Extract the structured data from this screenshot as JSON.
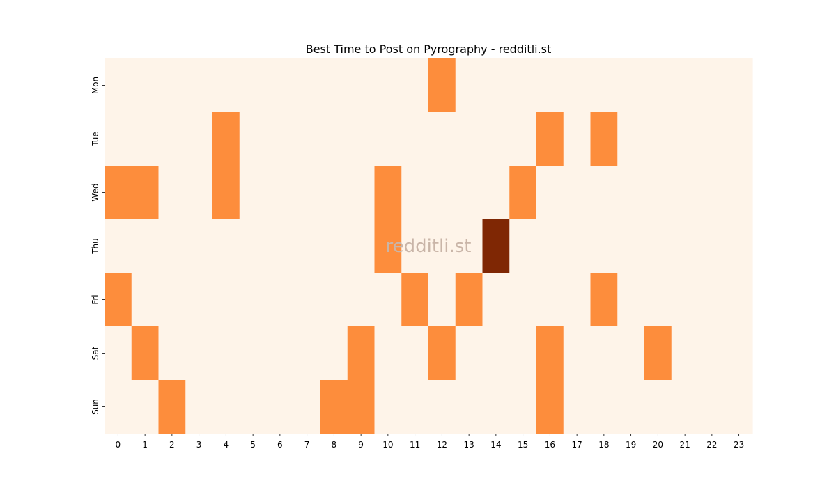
{
  "chart_data": {
    "type": "heatmap",
    "title": "Best Time to Post on Pyrography - redditli.st",
    "watermark": "redditli.st",
    "x_labels": [
      "0",
      "1",
      "2",
      "3",
      "4",
      "5",
      "6",
      "7",
      "8",
      "9",
      "10",
      "11",
      "12",
      "13",
      "14",
      "15",
      "16",
      "17",
      "18",
      "19",
      "20",
      "21",
      "22",
      "23"
    ],
    "y_labels": [
      "Mon",
      "Tue",
      "Wed",
      "Thu",
      "Fri",
      "Sat",
      "Sun"
    ],
    "xlabel": "",
    "ylabel": "",
    "values": [
      [
        0,
        0,
        0,
        0,
        0,
        0,
        0,
        0,
        0,
        0,
        0,
        0,
        1,
        0,
        0,
        0,
        0,
        0,
        0,
        0,
        0,
        0,
        0,
        0
      ],
      [
        0,
        0,
        0,
        0,
        1,
        0,
        0,
        0,
        0,
        0,
        0,
        0,
        0,
        0,
        0,
        0,
        1,
        0,
        1,
        0,
        0,
        0,
        0,
        0
      ],
      [
        1,
        1,
        0,
        0,
        1,
        0,
        0,
        0,
        0,
        0,
        1,
        0,
        0,
        0,
        0,
        1,
        0,
        0,
        0,
        0,
        0,
        0,
        0,
        0
      ],
      [
        0,
        0,
        0,
        0,
        0,
        0,
        0,
        0,
        0,
        0,
        1,
        0,
        0,
        0,
        2,
        0,
        0,
        0,
        0,
        0,
        0,
        0,
        0,
        0
      ],
      [
        1,
        0,
        0,
        0,
        0,
        0,
        0,
        0,
        0,
        0,
        0,
        1,
        0,
        1,
        0,
        0,
        0,
        0,
        1,
        0,
        0,
        0,
        0,
        0
      ],
      [
        0,
        1,
        0,
        0,
        0,
        0,
        0,
        0,
        0,
        1,
        0,
        0,
        1,
        0,
        0,
        0,
        1,
        0,
        0,
        0,
        1,
        0,
        0,
        0
      ],
      [
        0,
        0,
        1,
        0,
        0,
        0,
        0,
        0,
        1,
        1,
        0,
        0,
        0,
        0,
        0,
        0,
        1,
        0,
        0,
        0,
        0,
        0,
        0,
        0
      ]
    ],
    "value_range": [
      0,
      2
    ],
    "colors": {
      "0": "#fef4e9",
      "1": "#fd8d3c",
      "2": "#7f2704"
    },
    "watermark_color": "#c9b5a8",
    "grid": false,
    "legend": "none"
  }
}
